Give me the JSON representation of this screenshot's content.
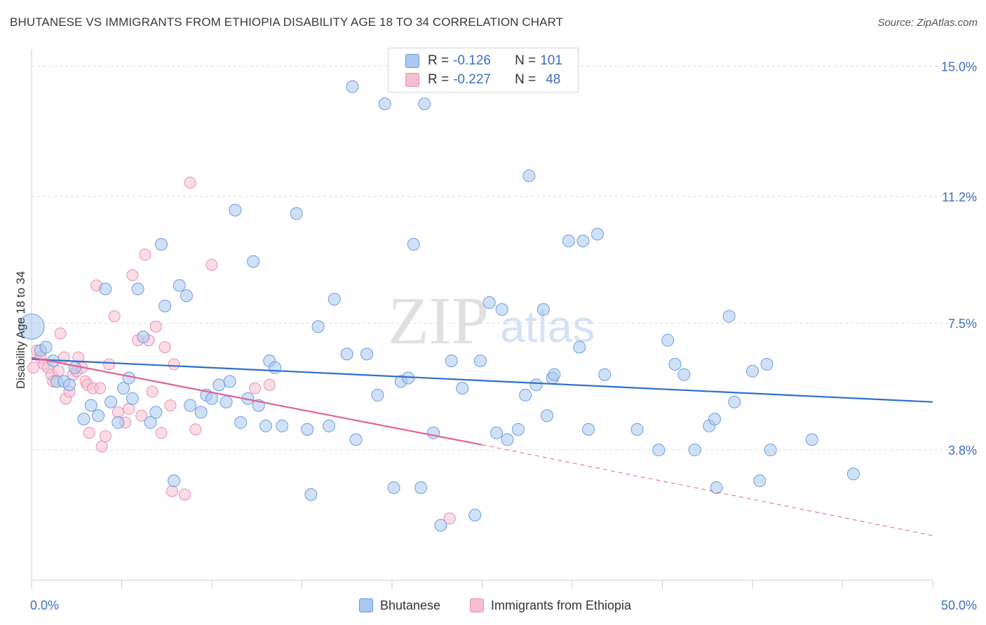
{
  "header": {
    "title": "BHUTANESE VS IMMIGRANTS FROM ETHIOPIA DISABILITY AGE 18 TO 34 CORRELATION CHART",
    "source": "Source: ZipAtlas.com"
  },
  "watermark": {
    "zip": "ZIP",
    "atlas": "atlas"
  },
  "legend": {
    "rows": [
      {
        "r_label": "R = ",
        "r_value": "-0.126",
        "n_label": "N = ",
        "n_value": "101"
      },
      {
        "r_label": "R = ",
        "r_value": "-0.227",
        "n_label": "N = ",
        "n_value": "48"
      }
    ]
  },
  "bottom_legend": {
    "items": [
      "Bhutanese",
      "Immigrants from Ethiopia"
    ]
  },
  "colors": {
    "blue_fill": "#aac8f0",
    "blue_stroke": "#6b9be0",
    "blue_line": "#2f6fcc",
    "pink_fill": "#f6bfd0",
    "pink_stroke": "#e890ad",
    "pink_line": "#e0628f",
    "tick_label": "#3d6fc4",
    "grid": "#dcdcdc"
  },
  "chart_data": {
    "type": "scatter",
    "title": "BHUTANESE VS IMMIGRANTS FROM ETHIOPIA DISABILITY AGE 18 TO 34 CORRELATION CHART",
    "xlabel": "",
    "ylabel": "Disability Age 18 to 34",
    "xlim": [
      0,
      50
    ],
    "ylim": [
      0,
      15.5
    ],
    "x_tick_labels": [
      "0.0%",
      "50.0%"
    ],
    "y_ticks": [
      3.8,
      7.5,
      11.2,
      15.0
    ],
    "y_tick_labels": [
      "3.8%",
      "7.5%",
      "11.2%",
      "15.0%"
    ],
    "grid": true,
    "legend_position": "top-center",
    "series": [
      {
        "name": "Bhutanese",
        "R": -0.126,
        "N": 101,
        "trend": {
          "x": [
            0,
            50
          ],
          "y": [
            6.45,
            5.2
          ]
        },
        "points": [
          [
            0.0,
            7.4
          ],
          [
            0.5,
            6.7
          ],
          [
            0.8,
            6.8
          ],
          [
            1.2,
            6.4
          ],
          [
            1.4,
            5.8
          ],
          [
            1.8,
            5.8
          ],
          [
            2.1,
            5.7
          ],
          [
            2.4,
            6.2
          ],
          [
            2.9,
            4.7
          ],
          [
            3.3,
            5.1
          ],
          [
            3.7,
            4.8
          ],
          [
            4.1,
            8.5
          ],
          [
            4.4,
            5.2
          ],
          [
            4.8,
            4.6
          ],
          [
            5.1,
            5.6
          ],
          [
            5.4,
            5.9
          ],
          [
            5.6,
            5.3
          ],
          [
            5.9,
            8.5
          ],
          [
            6.2,
            7.1
          ],
          [
            6.6,
            4.6
          ],
          [
            6.9,
            4.9
          ],
          [
            7.2,
            9.8
          ],
          [
            7.4,
            8.0
          ],
          [
            7.9,
            2.9
          ],
          [
            8.2,
            8.6
          ],
          [
            8.6,
            8.3
          ],
          [
            8.8,
            5.1
          ],
          [
            9.4,
            4.9
          ],
          [
            9.7,
            5.4
          ],
          [
            10.0,
            5.3
          ],
          [
            10.4,
            5.7
          ],
          [
            10.8,
            5.2
          ],
          [
            11.0,
            5.8
          ],
          [
            11.3,
            10.8
          ],
          [
            11.6,
            4.6
          ],
          [
            12.3,
            9.3
          ],
          [
            12.0,
            5.3
          ],
          [
            12.6,
            5.1
          ],
          [
            13.2,
            6.4
          ],
          [
            13.5,
            6.2
          ],
          [
            13.0,
            4.5
          ],
          [
            13.9,
            4.5
          ],
          [
            14.7,
            10.7
          ],
          [
            15.3,
            4.4
          ],
          [
            15.5,
            2.5
          ],
          [
            15.9,
            7.4
          ],
          [
            16.5,
            4.5
          ],
          [
            16.8,
            8.2
          ],
          [
            17.5,
            6.6
          ],
          [
            18.0,
            4.1
          ],
          [
            18.6,
            6.6
          ],
          [
            19.2,
            5.4
          ],
          [
            20.1,
            2.7
          ],
          [
            20.5,
            5.8
          ],
          [
            20.9,
            5.9
          ],
          [
            21.2,
            9.8
          ],
          [
            21.6,
            2.7
          ],
          [
            22.3,
            4.3
          ],
          [
            22.7,
            1.6
          ],
          [
            23.3,
            6.4
          ],
          [
            23.9,
            5.6
          ],
          [
            24.6,
            1.9
          ],
          [
            24.9,
            6.4
          ],
          [
            25.4,
            8.1
          ],
          [
            25.8,
            4.3
          ],
          [
            26.1,
            7.9
          ],
          [
            26.4,
            4.1
          ],
          [
            27.0,
            4.4
          ],
          [
            28.6,
            4.8
          ],
          [
            28.9,
            5.9
          ],
          [
            17.8,
            14.4
          ],
          [
            19.6,
            13.9
          ],
          [
            21.8,
            13.9
          ],
          [
            27.6,
            11.8
          ],
          [
            29.8,
            9.9
          ],
          [
            30.6,
            9.9
          ],
          [
            31.4,
            10.1
          ],
          [
            27.4,
            5.4
          ],
          [
            28.0,
            5.7
          ],
          [
            28.4,
            7.9
          ],
          [
            29.0,
            6.0
          ],
          [
            30.4,
            6.8
          ],
          [
            30.9,
            4.4
          ],
          [
            31.8,
            6.0
          ],
          [
            33.6,
            4.4
          ],
          [
            34.8,
            3.8
          ],
          [
            35.3,
            7.0
          ],
          [
            35.7,
            6.3
          ],
          [
            36.2,
            6.0
          ],
          [
            36.8,
            3.8
          ],
          [
            37.6,
            4.5
          ],
          [
            37.9,
            4.7
          ],
          [
            38.0,
            2.7
          ],
          [
            38.7,
            7.7
          ],
          [
            39.0,
            5.2
          ],
          [
            40.0,
            6.1
          ],
          [
            40.4,
            2.9
          ],
          [
            40.8,
            6.3
          ],
          [
            41.0,
            3.8
          ],
          [
            43.3,
            4.1
          ],
          [
            45.6,
            3.1
          ]
        ]
      },
      {
        "name": "Immigrants from Ethiopia",
        "R": -0.227,
        "N": 48,
        "trend": {
          "x": [
            0,
            25
          ],
          "y": [
            6.5,
            3.95
          ]
        },
        "trend_extension": {
          "x": [
            25,
            50
          ],
          "y": [
            3.95,
            1.3
          ]
        },
        "points": [
          [
            0.1,
            6.2
          ],
          [
            0.3,
            6.7
          ],
          [
            0.5,
            6.5
          ],
          [
            0.7,
            6.3
          ],
          [
            0.9,
            6.2
          ],
          [
            1.1,
            6.0
          ],
          [
            1.2,
            5.8
          ],
          [
            1.5,
            6.1
          ],
          [
            1.6,
            7.2
          ],
          [
            1.8,
            6.5
          ],
          [
            1.9,
            5.3
          ],
          [
            2.1,
            5.5
          ],
          [
            2.3,
            6.0
          ],
          [
            2.5,
            6.1
          ],
          [
            2.6,
            6.5
          ],
          [
            2.8,
            6.2
          ],
          [
            3.0,
            5.8
          ],
          [
            3.1,
            5.7
          ],
          [
            3.2,
            4.3
          ],
          [
            3.4,
            5.6
          ],
          [
            3.6,
            8.6
          ],
          [
            3.8,
            5.6
          ],
          [
            3.9,
            3.9
          ],
          [
            4.1,
            4.2
          ],
          [
            4.3,
            6.3
          ],
          [
            4.6,
            7.7
          ],
          [
            4.8,
            4.9
          ],
          [
            5.2,
            4.6
          ],
          [
            5.4,
            5.0
          ],
          [
            5.6,
            8.9
          ],
          [
            5.9,
            7.0
          ],
          [
            6.1,
            4.8
          ],
          [
            6.3,
            9.5
          ],
          [
            6.5,
            7.0
          ],
          [
            6.7,
            5.5
          ],
          [
            6.9,
            7.4
          ],
          [
            7.2,
            4.3
          ],
          [
            7.4,
            6.8
          ],
          [
            7.7,
            5.1
          ],
          [
            7.8,
            2.6
          ],
          [
            7.9,
            6.3
          ],
          [
            8.5,
            2.5
          ],
          [
            8.8,
            11.6
          ],
          [
            9.1,
            4.4
          ],
          [
            10.0,
            9.2
          ],
          [
            12.4,
            5.6
          ],
          [
            13.2,
            5.7
          ],
          [
            23.2,
            1.8
          ]
        ]
      }
    ]
  }
}
